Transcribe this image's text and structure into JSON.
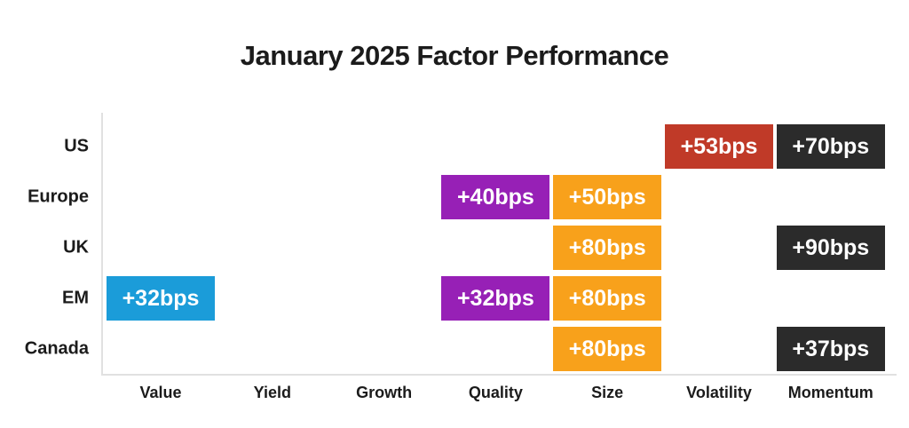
{
  "title": "January 2025 Factor Performance",
  "colors": {
    "blue": "#1B9CD9",
    "purple": "#9720B6",
    "orange": "#F8A11B",
    "red": "#C03A28",
    "dark": "#2B2B2B",
    "axis": "#E1E1E1",
    "text": "#1B1B1B",
    "cell_text": "#FFFFFF",
    "background": "#FFFFFF"
  },
  "chart_data": {
    "type": "heatmap",
    "title": "January 2025 Factor Performance",
    "unit": "bps",
    "legend": "none",
    "grid": "off",
    "rows": [
      "US",
      "Europe",
      "UK",
      "EM",
      "Canada"
    ],
    "columns": [
      "Value",
      "Yield",
      "Growth",
      "Quality",
      "Size",
      "Volatility",
      "Momentum"
    ],
    "cells": [
      {
        "row": "US",
        "column": "Volatility",
        "label": "+53bps",
        "value": 53,
        "color": "red"
      },
      {
        "row": "US",
        "column": "Momentum",
        "label": "+70bps",
        "value": 70,
        "color": "dark"
      },
      {
        "row": "Europe",
        "column": "Quality",
        "label": "+40bps",
        "value": 40,
        "color": "purple"
      },
      {
        "row": "Europe",
        "column": "Size",
        "label": "+50bps",
        "value": 50,
        "color": "orange"
      },
      {
        "row": "UK",
        "column": "Size",
        "label": "+80bps",
        "value": 80,
        "color": "orange"
      },
      {
        "row": "UK",
        "column": "Momentum",
        "label": "+90bps",
        "value": 90,
        "color": "dark"
      },
      {
        "row": "EM",
        "column": "Value",
        "label": "+32bps",
        "value": 32,
        "color": "blue"
      },
      {
        "row": "EM",
        "column": "Quality",
        "label": "+32bps",
        "value": 32,
        "color": "purple"
      },
      {
        "row": "EM",
        "column": "Size",
        "label": "+80bps",
        "value": 80,
        "color": "orange"
      },
      {
        "row": "Canada",
        "column": "Size",
        "label": "+80bps",
        "value": 80,
        "color": "orange"
      },
      {
        "row": "Canada",
        "column": "Momentum",
        "label": "+37bps",
        "value": 37,
        "color": "dark"
      }
    ]
  }
}
